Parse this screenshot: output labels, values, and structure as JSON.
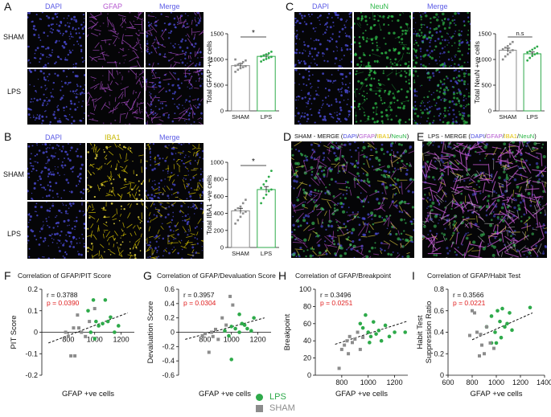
{
  "panels": {
    "A": {
      "letter": "A",
      "channels": [
        {
          "label": "DAPI",
          "color": "#5b5be6"
        },
        {
          "label": "GFAP",
          "color": "#b65ad0"
        },
        {
          "label": "Merge",
          "color": "#5b5be6"
        }
      ],
      "rows": [
        "SHAM",
        "LPS"
      ]
    },
    "B": {
      "letter": "B",
      "channels": [
        {
          "label": "DAPI",
          "color": "#5b5be6"
        },
        {
          "label": "IBA1",
          "color": "#c8b800"
        },
        {
          "label": "Merge",
          "color": "#5b5be6"
        }
      ],
      "rows": [
        "SHAM",
        "LPS"
      ]
    },
    "C": {
      "letter": "C",
      "channels": [
        {
          "label": "DAPI",
          "color": "#5b5be6"
        },
        {
          "label": "NeuN",
          "color": "#2fb84a"
        },
        {
          "label": "Merge",
          "color": "#5b5be6"
        }
      ],
      "rows": []
    },
    "D": {
      "letter": "D",
      "title_prefix": "SHAM - MERGE (",
      "title_suffix": ")"
    },
    "E": {
      "letter": "E",
      "title_prefix": "LPS - MERGE (",
      "title_suffix": ")"
    },
    "F": {
      "letter": "F",
      "title": "Correlation of GFAP/PIT Score"
    },
    "G": {
      "letter": "G",
      "title": "Correlation of GFAP/Devaluation Score"
    },
    "H": {
      "letter": "H",
      "title": "Correlation of GFAP/Breakpoint"
    },
    "I": {
      "letter": "I",
      "title": "Correlation of GFAP/Habit Test"
    }
  },
  "merge_legend": [
    {
      "text": "DAPI",
      "color": "#4a4ae0"
    },
    {
      "text": "/",
      "color": "#222222"
    },
    {
      "text": "GFAP",
      "color": "#b65ad0"
    },
    {
      "text": "/",
      "color": "#222222"
    },
    {
      "text": "IBA1",
      "color": "#e0c000"
    },
    {
      "text": "/",
      "color": "#222222"
    },
    {
      "text": "NeuN",
      "color": "#2fb84a"
    }
  ],
  "legend": {
    "lps": {
      "label": "LPS",
      "color": "#2eaa4a"
    },
    "sham": {
      "label": "SHAM",
      "color": "#8c8c8c"
    }
  },
  "chart_data": [
    {
      "id": "A-bar",
      "type": "bar",
      "categories": [
        "SHAM",
        "LPS"
      ],
      "values": [
        880,
        1060
      ],
      "errors": [
        40,
        30
      ],
      "ylabel": "Total GFAP +ve cells",
      "ylim": [
        0,
        1500
      ],
      "yticks": [
        0,
        500,
        1000,
        1500
      ],
      "significance": "*",
      "points": {
        "SHAM": [
          760,
          800,
          830,
          850,
          870,
          880,
          900,
          920,
          950,
          980,
          1000
        ],
        "LPS": [
          960,
          990,
          1010,
          1030,
          1050,
          1060,
          1080,
          1100,
          1120,
          1150
        ]
      }
    },
    {
      "id": "B-bar",
      "type": "bar",
      "categories": [
        "SHAM",
        "LPS"
      ],
      "values": [
        430,
        680
      ],
      "errors": [
        30,
        35
      ],
      "ylabel": "Total IBA1 +ve cells",
      "ylim": [
        0,
        1000
      ],
      "yticks": [
        0,
        200,
        400,
        600,
        800,
        1000
      ],
      "significance": "*",
      "points": {
        "SHAM": [
          280,
          320,
          360,
          400,
          420,
          440,
          460,
          480,
          520,
          560
        ],
        "LPS": [
          520,
          580,
          620,
          660,
          680,
          700,
          740,
          780,
          830,
          900
        ]
      }
    },
    {
      "id": "C-bar",
      "type": "bar",
      "categories": [
        "SHAM",
        "LPS"
      ],
      "values": [
        1180,
        1110
      ],
      "errors": [
        40,
        35
      ],
      "ylabel": "Total NeuN +ve cells",
      "ylim": [
        0,
        1500
      ],
      "yticks": [
        0,
        500,
        1000,
        1500
      ],
      "significance": "n.s",
      "points": {
        "SHAM": [
          1000,
          1060,
          1100,
          1140,
          1180,
          1200,
          1230,
          1260,
          1300,
          1340
        ],
        "LPS": [
          980,
          1030,
          1070,
          1100,
          1120,
          1140,
          1160,
          1190,
          1220,
          1250
        ]
      }
    },
    {
      "id": "F-scatter",
      "type": "scatter",
      "title": "Correlation of GFAP/PIT Score",
      "xlabel": "GFAP +ve cells",
      "ylabel": "PIT Score",
      "xlim": [
        600,
        1300
      ],
      "xticks": [
        800,
        1000,
        1200
      ],
      "ylim": [
        -0.2,
        0.2
      ],
      "yticks": [
        -0.2,
        -0.1,
        0.0,
        0.1,
        0.2
      ],
      "r": "r = 0.3788",
      "p": "p = 0.0390",
      "trend": [
        [
          650,
          -0.05
        ],
        [
          1250,
          0.09
        ]
      ],
      "series": [
        {
          "name": "LPS",
          "points": [
            [
              950,
              0.1
            ],
            [
              990,
              0.15
            ],
            [
              1010,
              0.05
            ],
            [
              1030,
              0.03
            ],
            [
              1060,
              0.04
            ],
            [
              1080,
              0.15
            ],
            [
              1100,
              0.05
            ],
            [
              1120,
              0.07
            ],
            [
              1150,
              0.0
            ],
            [
              1180,
              0.03
            ],
            [
              1000,
              -0.03
            ],
            [
              970,
              0.0
            ]
          ]
        },
        {
          "name": "SHAM",
          "points": [
            [
              780,
              0.0
            ],
            [
              800,
              -0.02
            ],
            [
              820,
              -0.11
            ],
            [
              850,
              -0.11
            ],
            [
              870,
              0.08
            ],
            [
              880,
              0.02
            ],
            [
              900,
              0.0
            ],
            [
              930,
              -0.02
            ],
            [
              960,
              0.05
            ],
            [
              1000,
              0.11
            ],
            [
              840,
              0.02
            ]
          ]
        }
      ]
    },
    {
      "id": "G-scatter",
      "type": "scatter",
      "title": "Correlation of GFAP/Devaluation Score",
      "xlabel": "GFAP +ve cells",
      "ylabel": "Devaluation Score",
      "xlim": [
        600,
        1300
      ],
      "xticks": [
        800,
        1000,
        1200
      ],
      "ylim": [
        -0.6,
        0.6
      ],
      "yticks": [
        -0.6,
        -0.4,
        -0.2,
        0.0,
        0.2,
        0.4,
        0.6
      ],
      "r": "r = 0.3957",
      "p": "p = 0.0304",
      "trend": [
        [
          650,
          -0.1
        ],
        [
          1250,
          0.2
        ]
      ],
      "series": [
        {
          "name": "LPS",
          "points": [
            [
              950,
              0.02
            ],
            [
              980,
              -0.05
            ],
            [
              1000,
              0.08
            ],
            [
              1030,
              0.05
            ],
            [
              1060,
              0.0
            ],
            [
              1080,
              0.12
            ],
            [
              1100,
              0.1
            ],
            [
              1120,
              0.05
            ],
            [
              1150,
              0.02
            ],
            [
              1170,
              0.2
            ],
            [
              1000,
              -0.38
            ],
            [
              1060,
              0.25
            ]
          ]
        },
        {
          "name": "SHAM",
          "points": [
            [
              780,
              -0.05
            ],
            [
              800,
              -0.02
            ],
            [
              830,
              -0.28
            ],
            [
              850,
              0.0
            ],
            [
              880,
              0.04
            ],
            [
              900,
              -0.1
            ],
            [
              930,
              0.2
            ],
            [
              960,
              0.1
            ],
            [
              990,
              0.5
            ],
            [
              1010,
              0.38
            ],
            [
              860,
              -0.06
            ]
          ]
        }
      ]
    },
    {
      "id": "H-scatter",
      "type": "scatter",
      "title": "Correlation of GFAP/Breakpoint",
      "xlabel": "GFAP +ve cells",
      "ylabel": "Breakpoint",
      "xlim": [
        600,
        1300
      ],
      "xticks": [
        800,
        1000,
        1200
      ],
      "ylim": [
        0,
        100
      ],
      "yticks": [
        0,
        20,
        40,
        60,
        80,
        100
      ],
      "r": "r = 0.3496",
      "p": "p = 0.0251",
      "trend": [
        [
          750,
          36
        ],
        [
          1300,
          63
        ]
      ],
      "series": [
        {
          "name": "LPS",
          "points": [
            [
              940,
              60
            ],
            [
              960,
              55
            ],
            [
              980,
              70
            ],
            [
              1000,
              50
            ],
            [
              1020,
              45
            ],
            [
              1040,
              62
            ],
            [
              1060,
              48
            ],
            [
              1080,
              52
            ],
            [
              1100,
              40
            ],
            [
              1130,
              58
            ],
            [
              1160,
              45
            ],
            [
              1200,
              50
            ],
            [
              1280,
              50
            ],
            [
              1010,
              38
            ]
          ]
        },
        {
          "name": "SHAM",
          "points": [
            [
              780,
              8
            ],
            [
              800,
              30
            ],
            [
              820,
              35
            ],
            [
              840,
              40
            ],
            [
              860,
              45
            ],
            [
              880,
              38
            ],
            [
              900,
              42
            ],
            [
              920,
              50
            ],
            [
              940,
              30
            ],
            [
              960,
              44
            ],
            [
              850,
              25
            ]
          ]
        }
      ]
    },
    {
      "id": "I-scatter",
      "type": "scatter",
      "title": "Correlation of GFAP/Habit Test",
      "xlabel": "GFAP +ve cells",
      "ylabel": "Habit Test\nSuppression Ratio",
      "xlim": [
        600,
        1400
      ],
      "xticks": [
        600,
        800,
        1000,
        1200,
        1400
      ],
      "ylim": [
        0.0,
        0.8
      ],
      "yticks": [
        0.0,
        0.2,
        0.4,
        0.6,
        0.8
      ],
      "r": "r = 0.3566",
      "p": "p = 0.0221",
      "trend": [
        [
          800,
          0.33
        ],
        [
          1300,
          0.58
        ]
      ],
      "series": [
        {
          "name": "LPS",
          "points": [
            [
              920,
              0.45
            ],
            [
              960,
              0.55
            ],
            [
              990,
              0.4
            ],
            [
              1010,
              0.6
            ],
            [
              1030,
              0.5
            ],
            [
              1050,
              0.62
            ],
            [
              1070,
              0.45
            ],
            [
              1090,
              0.48
            ],
            [
              1110,
              0.58
            ],
            [
              1130,
              0.42
            ],
            [
              1280,
              0.63
            ],
            [
              1000,
              0.3
            ],
            [
              1040,
              0.35
            ],
            [
              960,
              0.3
            ]
          ]
        },
        {
          "name": "SHAM",
          "points": [
            [
              780,
              0.37
            ],
            [
              800,
              0.6
            ],
            [
              820,
              0.58
            ],
            [
              840,
              0.4
            ],
            [
              860,
              0.18
            ],
            [
              880,
              0.28
            ],
            [
              900,
              0.2
            ],
            [
              920,
              0.45
            ],
            [
              950,
              0.3
            ],
            [
              980,
              0.25
            ],
            [
              870,
              0.38
            ]
          ]
        }
      ]
    }
  ]
}
